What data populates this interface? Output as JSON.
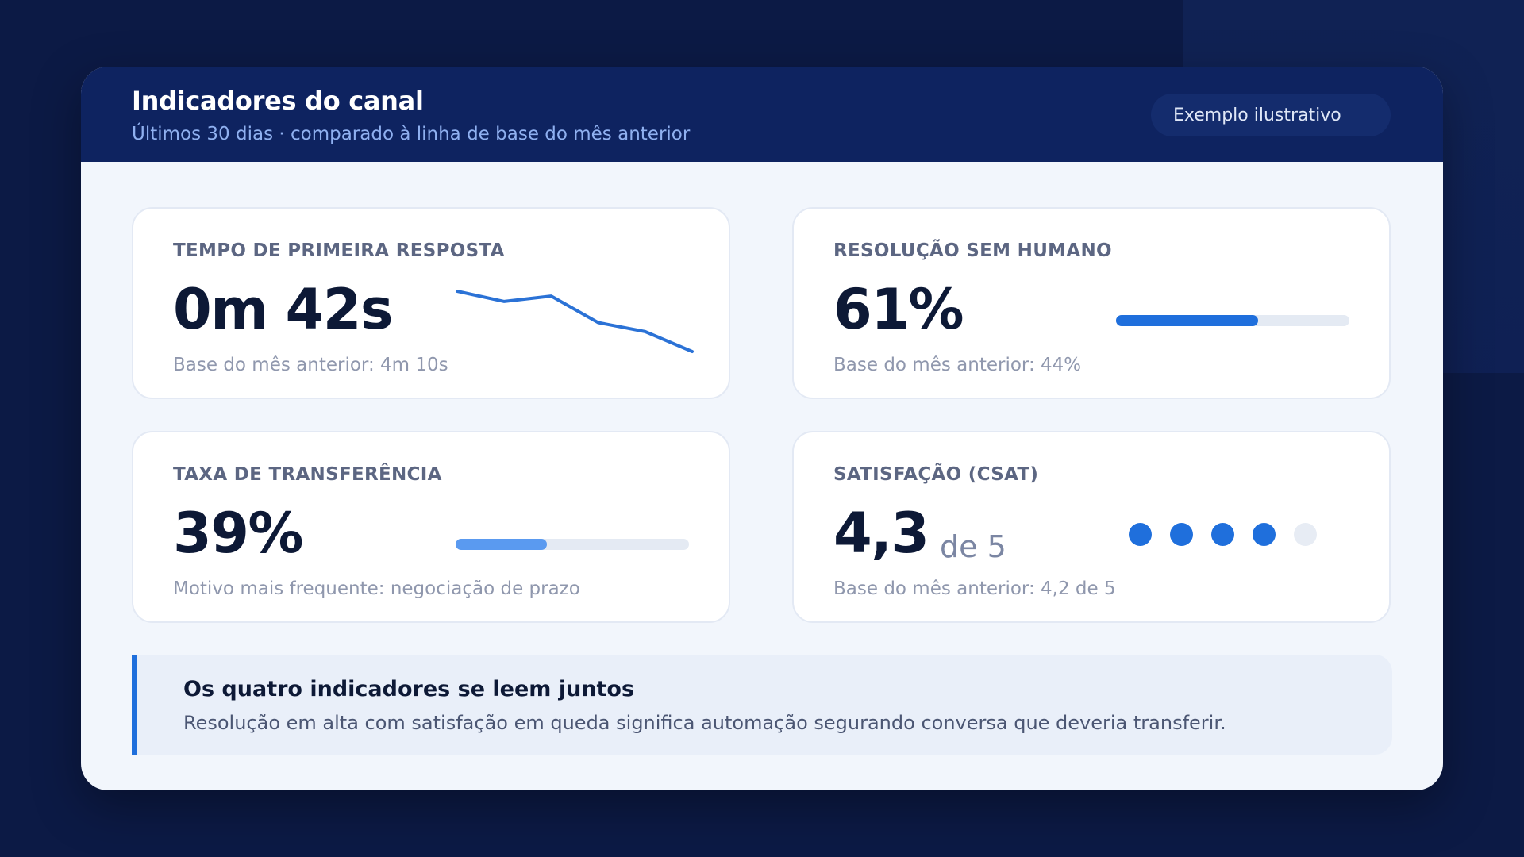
{
  "header": {
    "title": "Indicadores do canal",
    "subtitle": "Últimos 30 dias · comparado à linha de base do mês anterior",
    "badge": "Exemplo ilustrativo"
  },
  "cards": {
    "first_response": {
      "label": "TEMPO DE PRIMEIRA RESPOSTA",
      "value": "0m 42s",
      "foot": "Base do mês anterior: 4m 10s",
      "trend": [
        100,
        83,
        92,
        48,
        33,
        0
      ],
      "trend_color": "#2b72d6"
    },
    "resolution": {
      "label": "RESOLUÇÃO SEM HUMANO",
      "value": "61%",
      "foot": "Base do mês anterior: 44%",
      "progress": 0.61,
      "bar_color": "#1f6fdc"
    },
    "transfer": {
      "label": "TAXA DE TRANSFERÊNCIA",
      "value": "39%",
      "foot": "Motivo mais frequente: negociação de prazo",
      "progress": 0.39,
      "bar_color": "#5a9af0"
    },
    "csat": {
      "label": "SATISFAÇÃO (CSAT)",
      "value": "4,3",
      "unit": "de 5",
      "foot": "Base do mês anterior: 4,2 de 5",
      "rating_filled": 4,
      "rating_max": 5
    }
  },
  "callout": {
    "title": "Os quatro indicadores se leem juntos",
    "text": "Resolução em alta com satisfação em queda significa automação segurando conversa que deveria transferir."
  },
  "colors": {
    "accent": "#1f6fdc",
    "header_bg": "#0e2360",
    "page_bg": "#0c1a45"
  }
}
